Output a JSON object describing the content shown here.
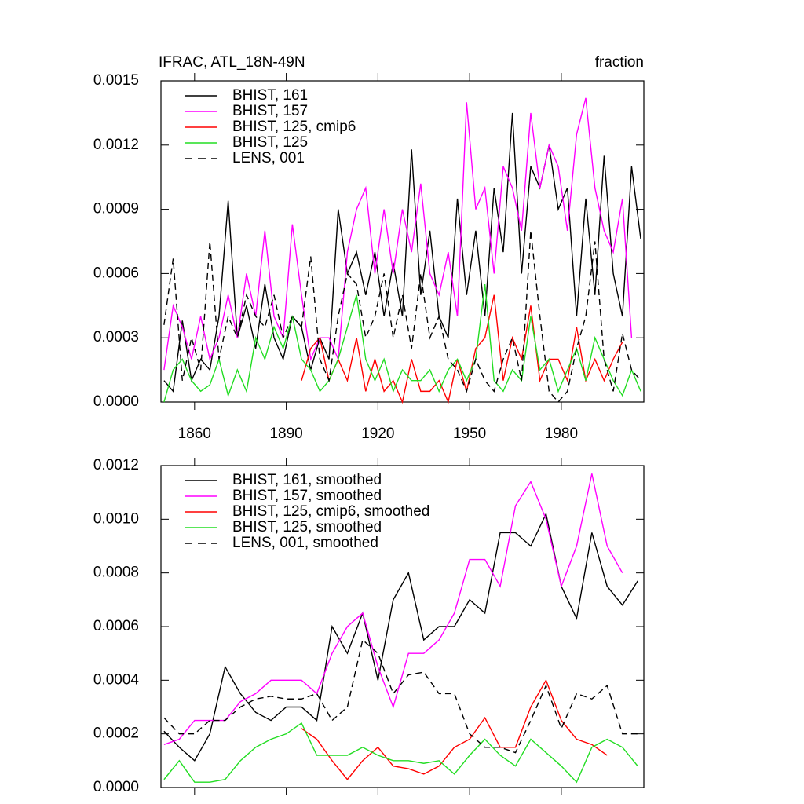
{
  "chart_data": [
    {
      "type": "line",
      "title": "IFRAC, ATL_18N-49N",
      "subtitle": "fraction",
      "x": [
        1850,
        1853,
        1856,
        1859,
        1862,
        1865,
        1868,
        1871,
        1874,
        1877,
        1880,
        1883,
        1886,
        1889,
        1892,
        1895,
        1898,
        1901,
        1904,
        1907,
        1910,
        1913,
        1916,
        1919,
        1922,
        1925,
        1928,
        1931,
        1934,
        1937,
        1940,
        1943,
        1946,
        1949,
        1952,
        1955,
        1958,
        1961,
        1964,
        1967,
        1970,
        1973,
        1976,
        1979,
        1982,
        1985,
        1988,
        1991,
        1994,
        1997,
        2000,
        2003,
        2006
      ],
      "xlim": [
        1849,
        2007
      ],
      "xticks": [
        1860,
        1890,
        1920,
        1950,
        1980
      ],
      "ylim": [
        0,
        0.0015
      ],
      "yticks": [
        {
          "value": 0,
          "label": "0.0000"
        },
        {
          "value": 0.0003,
          "label": "0.0003"
        },
        {
          "value": 0.0006,
          "label": "0.0006"
        },
        {
          "value": 0.0009,
          "label": "0.0009"
        },
        {
          "value": 0.0012,
          "label": "0.0012"
        },
        {
          "value": 0.0015,
          "label": "0.0015"
        }
      ],
      "legend": "upper left",
      "series": [
        {
          "name": "BHIST, 161",
          "color": "#000000",
          "dashed": false,
          "values": [
            0.0001,
            5e-05,
            0.00038,
            0.0001,
            0.0002,
            0.00015,
            0.0004,
            0.00094,
            0.0003,
            0.00045,
            0.00025,
            0.00055,
            0.0003,
            0.0002,
            0.0004,
            0.00035,
            0.00015,
            0.0003,
            0.0002,
            0.0009,
            0.0006,
            0.0007,
            0.0005,
            0.0007,
            0.0004,
            0.00065,
            0.0004,
            0.00118,
            0.0005,
            0.0008,
            0.0004,
            0.0003,
            0.00095,
            0.0005,
            0.0008,
            0.0004,
            0.001,
            0.0007,
            0.00135,
            0.0006,
            0.0011,
            0.001,
            0.0012,
            0.0009,
            0.001,
            0.0004,
            0.00095,
            0.0005,
            0.00115,
            0.0006,
            0.0004,
            0.0011,
            0.00076
          ]
        },
        {
          "name": "BHIST, 157",
          "color": "#ff00ff",
          "dashed": false,
          "values": [
            0.00015,
            0.00045,
            0.00035,
            0.0002,
            0.0004,
            0.0002,
            0.0003,
            0.0005,
            0.0003,
            0.0006,
            0.0004,
            0.0008,
            0.0004,
            0.0003,
            0.00083,
            0.0005,
            0.0002,
            0.0003,
            0.0003,
            0.0002,
            0.0007,
            0.0009,
            0.001,
            0.0006,
            0.0009,
            0.0006,
            0.0009,
            0.0007,
            0.00102,
            0.0006,
            0.0005,
            0.0007,
            0.0004,
            0.0014,
            0.0009,
            0.001,
            0.0006,
            0.0011,
            0.001,
            0.0008,
            0.00135,
            0.001,
            0.0012,
            0.0011,
            0.0008,
            0.00125,
            0.00142,
            0.001,
            0.0008,
            0.0007,
            0.00095,
            0.0003,
            null
          ]
        },
        {
          "name": "BHIST, 125, cmip6",
          "color": "#ff0000",
          "dashed": false,
          "values": [
            null,
            null,
            null,
            null,
            null,
            null,
            null,
            null,
            null,
            null,
            null,
            null,
            null,
            null,
            null,
            0.0001,
            0.00025,
            0.0003,
            0.0001,
            0.0002,
            0.0001,
            0.0003,
            5e-05,
            0.0002,
            5e-05,
            0.0001,
            0,
            0.0002,
            5e-05,
            5e-05,
            0.0001,
            0,
            0.0002,
            5e-05,
            0.00025,
            0.0003,
            0.0005,
            0.0001,
            0.0003,
            0.0002,
            0.00045,
            0.0001,
            0.0002,
            0.0002,
            0.0001,
            0.00035,
            0.0001,
            0.0002,
            0.0001,
            0.0002,
            0.00028,
            null,
            null
          ]
        },
        {
          "name": "BHIST, 125",
          "color": "#22dd22",
          "dashed": false,
          "values": [
            0,
            0.00015,
            0.0002,
            0.0001,
            5e-05,
            8e-05,
            0.0002,
            3e-05,
            0.00015,
            5e-05,
            0.0003,
            0.0002,
            0.00035,
            0.00025,
            0.0004,
            0.0002,
            0.00015,
            5e-05,
            0.0001,
            0.0002,
            0.00035,
            0.0005,
            0.0002,
            0.0001,
            0.0002,
            5e-05,
            0.00015,
            0.0001,
            0.0001,
            0.00015,
            5e-05,
            0.00015,
            0.0002,
            0.0001,
            0.0002,
            0.00055,
            0.0001,
            5e-05,
            0.00015,
            0.0001,
            0.0004,
            0.00015,
            0.0002,
            5e-05,
            0.00015,
            0.00025,
            0.0001,
            0.0003,
            0.0002,
            0.0001,
            3e-05,
            0.00015,
            5e-05
          ]
        },
        {
          "name": "LENS, 001",
          "color": "#000000",
          "dashed": true,
          "values": [
            0.00036,
            0.00067,
            0.0001,
            0.0003,
            0.00015,
            0.00075,
            0.0002,
            0.0004,
            0.0003,
            0.0005,
            0.0004,
            0.00035,
            0.0005,
            0.0003,
            0.0004,
            0.00035,
            0.00068,
            0.0002,
            0.0001,
            0.0004,
            0.0006,
            0.00055,
            0.0003,
            0.0004,
            0.0006,
            0.0003,
            0.0005,
            0.00025,
            0.0006,
            0.0003,
            0.0004,
            0.0002,
            0.00015,
            5e-05,
            0.0002,
            0.0001,
            5e-05,
            0.0002,
            0.0003,
            0.0001,
            0.0008,
            0.0004,
            5e-05,
            0,
            5e-05,
            0.00025,
            0.0004,
            0.00075,
            0.0002,
            5e-05,
            0.00032,
            0.00015,
            0.0001
          ]
        }
      ]
    },
    {
      "type": "line",
      "x": [
        1850,
        1855,
        1860,
        1865,
        1870,
        1875,
        1880,
        1885,
        1890,
        1895,
        1900,
        1905,
        1910,
        1915,
        1920,
        1925,
        1930,
        1935,
        1940,
        1945,
        1950,
        1955,
        1960,
        1965,
        1970,
        1975,
        1980,
        1985,
        1990,
        1995,
        2000,
        2005
      ],
      "xlim": [
        1849,
        2007
      ],
      "ylim": [
        0,
        0.0012
      ],
      "yticks": [
        {
          "value": 0,
          "label": "0.0000"
        },
        {
          "value": 0.0002,
          "label": "0.0002"
        },
        {
          "value": 0.0004,
          "label": "0.0004"
        },
        {
          "value": 0.0006,
          "label": "0.0006"
        },
        {
          "value": 0.0008,
          "label": "0.0008"
        },
        {
          "value": 0.001,
          "label": "0.0010"
        },
        {
          "value": 0.0012,
          "label": "0.0012"
        }
      ],
      "legend": "upper left",
      "series": [
        {
          "name": "BHIST, 161, smoothed",
          "color": "#000000",
          "dashed": false,
          "values": [
            0.00021,
            0.00015,
            0.0001,
            0.0002,
            0.00045,
            0.00035,
            0.00028,
            0.00025,
            0.0003,
            0.0003,
            0.00025,
            0.0006,
            0.0005,
            0.00065,
            0.0004,
            0.0007,
            0.0008,
            0.00055,
            0.0006,
            0.0006,
            0.0007,
            0.00065,
            0.00095,
            0.00095,
            0.0009,
            0.00102,
            0.00075,
            0.00063,
            0.00095,
            0.00075,
            0.00068,
            0.00077
          ]
        },
        {
          "name": "BHIST, 157, smoothed",
          "color": "#ff00ff",
          "dashed": false,
          "values": [
            0.00016,
            0.00018,
            0.00025,
            0.00025,
            0.00025,
            0.00032,
            0.00035,
            0.0004,
            0.0004,
            0.0004,
            0.00035,
            0.0005,
            0.0006,
            0.00065,
            0.00045,
            0.0003,
            0.0005,
            0.0005,
            0.00055,
            0.00065,
            0.00085,
            0.00085,
            0.00075,
            0.00105,
            0.00114,
            0.001,
            0.00075,
            0.0009,
            0.00117,
            0.0009,
            0.0008,
            null
          ]
        },
        {
          "name": "BHIST, 125, cmip6, smoothed",
          "color": "#ff0000",
          "dashed": false,
          "values": [
            null,
            null,
            null,
            null,
            null,
            null,
            null,
            null,
            null,
            0.00022,
            0.00018,
            0.0001,
            3e-05,
            0.0001,
            0.00015,
            8e-05,
            7e-05,
            5e-05,
            8e-05,
            0.00015,
            0.00018,
            0.00026,
            0.00015,
            0.00015,
            0.0003,
            0.0004,
            0.00025,
            0.00018,
            0.00016,
            0.00012,
            null,
            null
          ]
        },
        {
          "name": "BHIST, 125, smoothed",
          "color": "#22dd22",
          "dashed": false,
          "values": [
            3e-05,
            0.0001,
            2e-05,
            2e-05,
            3e-05,
            0.0001,
            0.00015,
            0.00018,
            0.0002,
            0.00024,
            0.00012,
            0.00012,
            0.00012,
            0.00015,
            0.00012,
            0.0001,
            0.0001,
            9e-05,
            0.0001,
            5e-05,
            0.00012,
            0.00018,
            0.00012,
            8e-05,
            0.00018,
            0.00013,
            8e-05,
            2e-05,
            0.00015,
            0.00018,
            0.00015,
            8e-05
          ]
        },
        {
          "name": "LENS, 001, smoothed",
          "color": "#000000",
          "dashed": true,
          "values": [
            0.00026,
            0.0002,
            0.0002,
            0.00025,
            0.00025,
            0.0003,
            0.00033,
            0.00034,
            0.00033,
            0.00033,
            0.00035,
            0.00025,
            0.0003,
            0.00055,
            0.0005,
            0.00035,
            0.00042,
            0.00043,
            0.00035,
            0.00035,
            0.0002,
            0.00015,
            0.00015,
            0.00013,
            0.00025,
            0.00038,
            0.00022,
            0.00035,
            0.00033,
            0.00038,
            0.0002,
            0.0002
          ]
        }
      ]
    }
  ]
}
